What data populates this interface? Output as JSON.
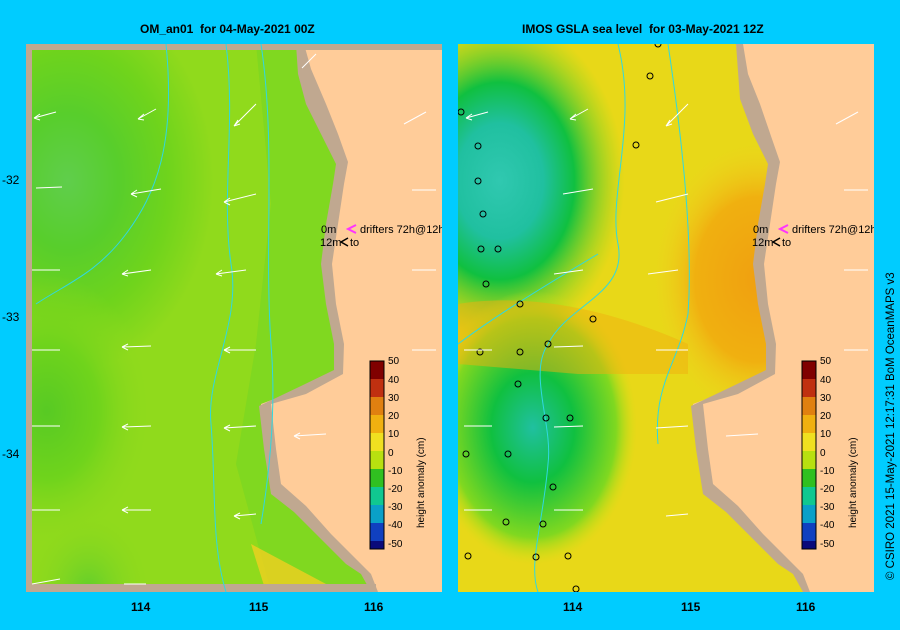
{
  "left_panel": {
    "title": "OM_an01  for 04-May-2021 00Z"
  },
  "right_panel": {
    "title": "IMOS GSLA sea level  for 03-May-2021 12Z"
  },
  "latitude_labels": [
    "-32",
    "-33",
    "-34"
  ],
  "longitude_labels": [
    "114",
    "115",
    "116"
  ],
  "legend": {
    "drifters_label": "drifters 72h@12h",
    "row1_left": "0m",
    "row2_left": "12m",
    "row2_right": "to"
  },
  "colorbar": {
    "label": "height anomaly (cm)",
    "ticks": [
      "50",
      "40",
      "30",
      "20",
      "10",
      "0",
      "-10",
      "-20",
      "-30",
      "-40",
      "-50"
    ],
    "colors": [
      "#0a0a7a",
      "#1040c0",
      "#0aa0c8",
      "#10c890",
      "#30c020",
      "#b8e010",
      "#f0e020",
      "#f0b010",
      "#e08010",
      "#c03010",
      "#800000"
    ]
  },
  "credit": "© CSIRO 2021  15-May-2021 12:17:31 BoM OceanMAPS v3",
  "colors": {
    "background": "#00ccff",
    "land": "#ffcc99",
    "shelf": "#c0a890",
    "bathymetry_line": "#30d8e0",
    "drifter_current": "#ff33ff"
  }
}
